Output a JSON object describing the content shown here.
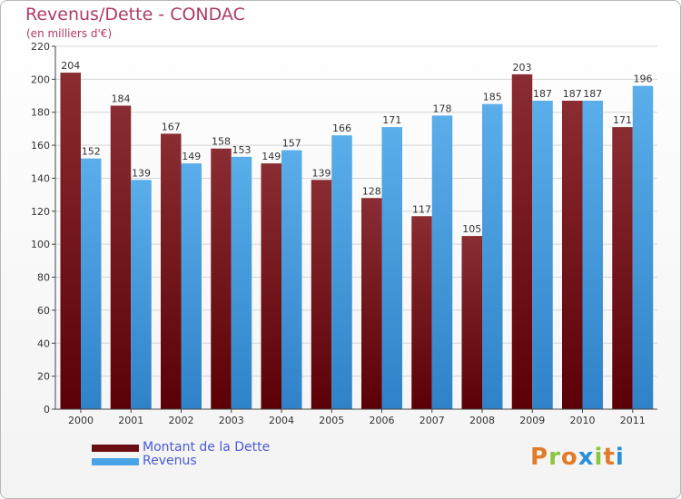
{
  "title": "Revenus/Dette - CONDAC",
  "subtitle": "(en milliers d'€)",
  "legend": [
    {
      "label": "Montant de la Dette",
      "color": "#6b0d12"
    },
    {
      "label": "Revenus",
      "color": "#4aa3e6"
    }
  ],
  "logo": {
    "text": "Proxiti",
    "letter_colors": [
      "#e07b2a",
      "#8cc63f",
      "#e07b2a",
      "#2a8fd6",
      "#8cc63f",
      "#e07b2a",
      "#2a8fd6"
    ]
  },
  "chart_data": {
    "type": "bar",
    "categories": [
      "2000",
      "2001",
      "2002",
      "2003",
      "2004",
      "2005",
      "2006",
      "2007",
      "2008",
      "2009",
      "2010",
      "2011"
    ],
    "series": [
      {
        "name": "Montant de la Dette",
        "color": "#6b0d12",
        "values": [
          204,
          184,
          167,
          158,
          149,
          139,
          128,
          117,
          105,
          203,
          187,
          171
        ]
      },
      {
        "name": "Revenus",
        "color": "#4aa3e6",
        "values": [
          152,
          139,
          149,
          153,
          157,
          166,
          171,
          178,
          185,
          187,
          187,
          196
        ]
      }
    ],
    "ylim": [
      0,
      220
    ],
    "yticks": [
      0,
      20,
      40,
      60,
      80,
      100,
      120,
      140,
      160,
      180,
      200,
      220
    ],
    "grid": true,
    "legend_position": "bottom-left"
  }
}
